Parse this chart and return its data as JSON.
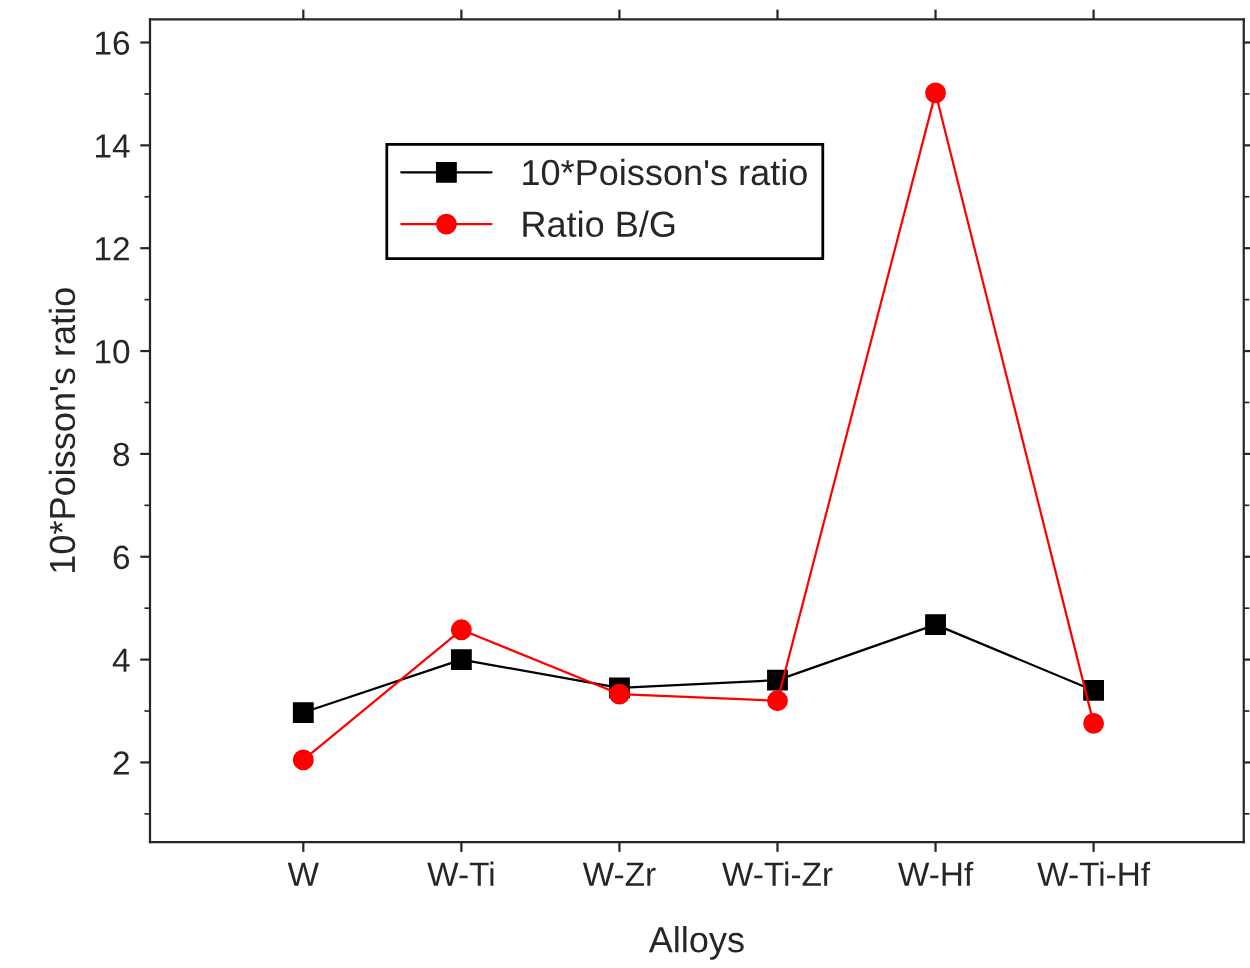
{
  "chart_data": {
    "type": "line",
    "xlabel": "Alloys",
    "ylabel": "10*Poisson's ratio",
    "categories": [
      "W",
      "W-Ti",
      "W-Zr",
      "W-Ti-Zr",
      "W-Hf",
      "W-Ti-Hf"
    ],
    "series": [
      {
        "name": "10*Poisson's ratio",
        "color": "#000000",
        "marker": "square",
        "values": [
          2.97,
          4.0,
          3.45,
          3.6,
          4.68,
          3.4
        ]
      },
      {
        "name": "Ratio B/G",
        "color": "#ff0000",
        "marker": "circle",
        "values": [
          2.05,
          4.58,
          3.33,
          3.2,
          15.02,
          2.76
        ]
      }
    ],
    "ylim": [
      0.45,
      16.45
    ],
    "yticks": [
      2,
      4,
      6,
      8,
      10,
      12,
      14,
      16
    ],
    "grid": false,
    "legend": "top left",
    "line_style": "solid"
  }
}
